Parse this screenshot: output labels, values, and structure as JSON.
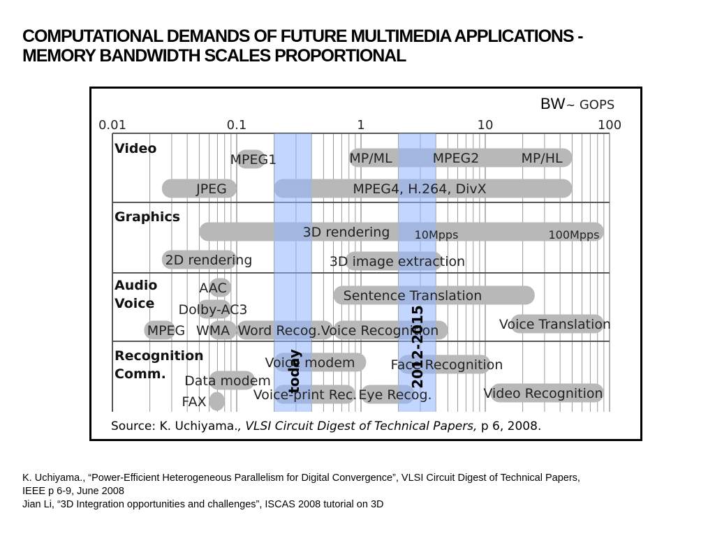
{
  "slide": {
    "title_lines": [
      "COMPUTATIONAL DEMANDS OF FUTURE MULTIMEDIA APPLICATIONS -",
      "MEMORY BANDWIDTH SCALES PROPORTIONAL"
    ],
    "references": [
      "K. Uchiyama., “Power-Efficient Heterogeneous Parallelism for Digital Convergence”, VLSI Circuit Digest of Technical Papers,",
      "IEEE   p 6-9, June 2008",
      "Jian Li, “3D Integration opportunities and challenges”, ISCAS 2008 tutorial on 3D"
    ]
  },
  "chart_data": {
    "type": "bar",
    "unit_label_prefix": "BW",
    "unit_label_tilde": "~",
    "unit_label_suffix": "GOPS",
    "x_scale": "log",
    "xlim": [
      0.01,
      100
    ],
    "x_ticks": [
      "0.01",
      "0.1",
      "1",
      "10",
      "100"
    ],
    "grid": true,
    "categories": [
      "Video",
      "Graphics",
      "Audio\nVoice",
      "Recognition\nComm."
    ],
    "highlights": [
      {
        "label": "today",
        "x_range": [
          0.2,
          0.4
        ],
        "color": "#8fb4ff"
      },
      {
        "label": "2012-2015",
        "x_range": [
          2,
          4
        ],
        "color": "#8fb4ff"
      }
    ],
    "bars": [
      {
        "label": "MPEG1",
        "category": "Video",
        "x_range": [
          0.1,
          0.17
        ]
      },
      {
        "label": "MP/ML",
        "category": "Video",
        "x_range": [
          0.8,
          2
        ]
      },
      {
        "label": "MPEG2",
        "category": "Video",
        "x_range": [
          2,
          10
        ]
      },
      {
        "label": "MP/HL",
        "category": "Video",
        "x_range": [
          10,
          50
        ]
      },
      {
        "label": "JPEG",
        "category": "Video",
        "x_range": [
          0.025,
          0.1
        ]
      },
      {
        "label": "MPEG4, H.264, DivX",
        "category": "Video",
        "x_range": [
          0.2,
          50
        ]
      },
      {
        "label": "3D rendering",
        "category": "Graphics",
        "x_range": [
          0.05,
          90
        ]
      },
      {
        "label": "10Mpps",
        "category": "Graphics",
        "x_range": [
          2.5,
          5
        ]
      },
      {
        "label": "100Mpps",
        "category": "Graphics",
        "x_range": [
          55,
          90
        ]
      },
      {
        "label": "2D rendering",
        "category": "Graphics",
        "x_range": [
          0.025,
          0.1
        ]
      },
      {
        "label": "3D image extraction",
        "category": "Graphics",
        "x_range": [
          0.75,
          4.5
        ]
      },
      {
        "label": "AAC",
        "category": "Audio\nVoice",
        "x_range": [
          0.06,
          0.09
        ]
      },
      {
        "label": "Sentence Translation",
        "category": "Audio\nVoice",
        "x_range": [
          0.6,
          25
        ]
      },
      {
        "label": "Dolby-AC3",
        "category": "Audio\nVoice",
        "x_range": [
          0.048,
          0.09
        ]
      },
      {
        "label": "MPEG",
        "category": "Audio\nVoice",
        "x_range": [
          0.018,
          0.032
        ]
      },
      {
        "label": "WMA",
        "category": "Audio\nVoice",
        "x_range": [
          0.06,
          0.1
        ]
      },
      {
        "label": "Word Recog.",
        "category": "Audio\nVoice",
        "x_range": [
          0.1,
          0.6
        ]
      },
      {
        "label": "Voice Recognition",
        "category": "Audio\nVoice",
        "x_range": [
          0.6,
          5
        ]
      },
      {
        "label": "Voice Translation",
        "category": "Audio\nVoice",
        "x_range": [
          16,
          90
        ]
      },
      {
        "label": "Voice modem",
        "category": "Recognition\nComm.",
        "x_range": [
          0.2,
          1.1
        ]
      },
      {
        "label": "Face Recognition",
        "category": "Recognition\nComm.",
        "x_range": [
          2,
          11
        ]
      },
      {
        "label": "Data modem",
        "category": "Recognition\nComm.",
        "x_range": [
          0.06,
          0.14
        ]
      },
      {
        "label": "Voice-print Rec.",
        "category": "Recognition\nComm.",
        "x_range": [
          0.2,
          0.9
        ]
      },
      {
        "label": "Eye Recog.",
        "category": "Recognition\nComm.",
        "x_range": [
          1,
          2.7
        ]
      },
      {
        "label": "Video Recognition",
        "category": "Recognition\nComm.",
        "x_range": [
          11,
          90
        ]
      },
      {
        "label": "FAX",
        "category": "Recognition\nComm.",
        "x_range": [
          0.06,
          0.08
        ]
      }
    ],
    "source_prefix": "Source: K. Uchiyama.",
    "source_italic": ", VLSI Circuit Digest of Technical Papers,",
    "source_suffix": " p 6, 2008."
  }
}
